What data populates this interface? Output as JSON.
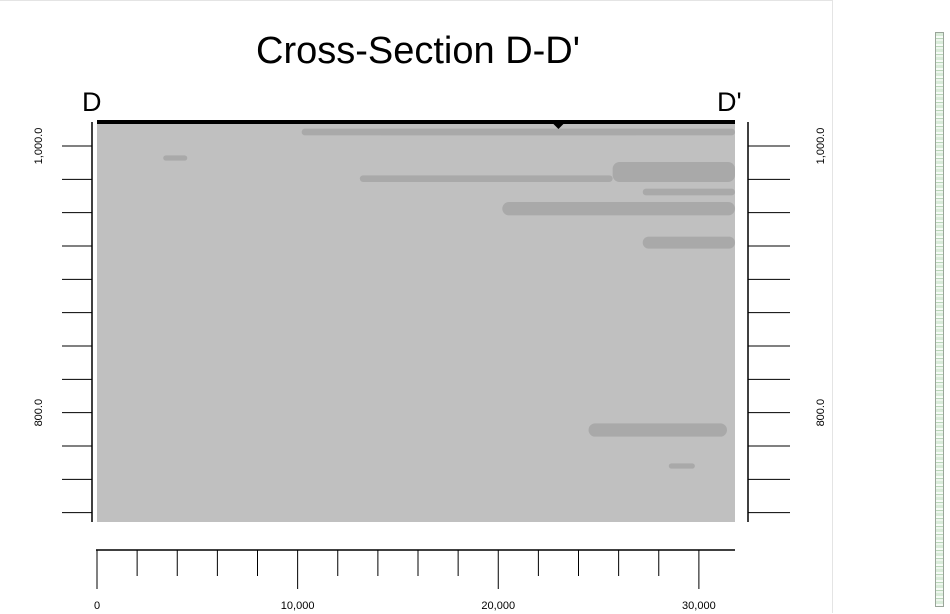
{
  "chart_data": {
    "type": "heatmap",
    "title": "Cross-Section D-D'",
    "section_start_label": "D",
    "section_end_label": "D'",
    "x_tick_labels": [
      "0",
      "10,000",
      "20,000",
      "30,000"
    ],
    "x_ticks": [
      0,
      2000,
      4000,
      6000,
      8000,
      10000,
      12000,
      14000,
      16000,
      18000,
      20000,
      22000,
      24000,
      26000,
      28000,
      30000
    ],
    "x_labeled": [
      0,
      10000,
      20000,
      30000
    ],
    "xlim": [
      0,
      31800
    ],
    "y_tick_labels": [
      "1,000.0",
      "800.0"
    ],
    "y_ticks": [
      1000,
      975,
      950,
      925,
      900,
      875,
      850,
      825,
      800,
      775,
      750,
      725
    ],
    "y_labeled": [
      1000,
      800
    ],
    "ylim": [
      1018,
      718
    ],
    "grid": false,
    "colors": {
      "background_fill": "#c0c0c0",
      "zone_fill": "#a9a9a9",
      "surface_line": "#000000"
    },
    "surface_elevation": 1018,
    "zones": [
      {
        "x": [
          10200,
          31800
        ],
        "ybot": 1008,
        "ytop": 1013
      },
      {
        "x": [
          3300,
          4500
        ],
        "ybot": 989,
        "ytop": 993
      },
      {
        "x": [
          13100,
          25700
        ],
        "ybot": 973,
        "ytop": 978
      },
      {
        "x": [
          25700,
          31800
        ],
        "ybot": 973,
        "ytop": 988
      },
      {
        "x": [
          27200,
          31800
        ],
        "ybot": 963,
        "ytop": 968
      },
      {
        "x": [
          20200,
          31800
        ],
        "ybot": 948,
        "ytop": 958
      },
      {
        "x": [
          27200,
          31800
        ],
        "ybot": 923,
        "ytop": 932
      },
      {
        "x": [
          24500,
          31400
        ],
        "ybot": 782,
        "ytop": 792
      },
      {
        "x": [
          28500,
          29800
        ],
        "ybot": 758,
        "ytop": 762
      }
    ]
  }
}
